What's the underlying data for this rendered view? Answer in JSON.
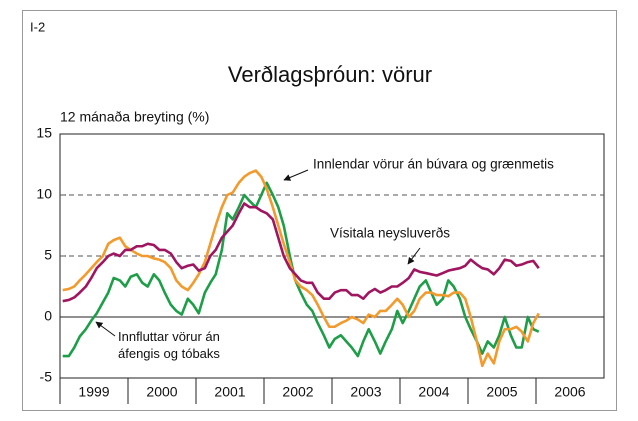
{
  "chart_data": {
    "type": "line",
    "label": "I-2",
    "title": "Verðlagsþróun: vörur",
    "y_axis_label": "12 mánaða breyting (%)",
    "xlim": [
      1999,
      2007
    ],
    "xticks": [
      1999,
      2000,
      2001,
      2002,
      2003,
      2004,
      2005,
      2006
    ],
    "ylim": [
      -5,
      15
    ],
    "yticks": [
      -5,
      0,
      5,
      10,
      15
    ],
    "grid": true,
    "x": [
      1999.04,
      1999.13,
      1999.21,
      1999.29,
      1999.38,
      1999.46,
      1999.54,
      1999.63,
      1999.71,
      1999.79,
      1999.88,
      1999.96,
      2000.04,
      2000.13,
      2000.21,
      2000.29,
      2000.38,
      2000.46,
      2000.54,
      2000.63,
      2000.71,
      2000.79,
      2000.88,
      2000.96,
      2001.04,
      2001.13,
      2001.21,
      2001.29,
      2001.38,
      2001.46,
      2001.54,
      2001.63,
      2001.71,
      2001.79,
      2001.88,
      2001.96,
      2002.04,
      2002.13,
      2002.21,
      2002.29,
      2002.38,
      2002.46,
      2002.54,
      2002.63,
      2002.71,
      2002.79,
      2002.88,
      2002.96,
      2003.04,
      2003.13,
      2003.21,
      2003.29,
      2003.38,
      2003.46,
      2003.54,
      2003.63,
      2003.71,
      2003.79,
      2003.88,
      2003.96,
      2004.04,
      2004.13,
      2004.21,
      2004.29,
      2004.38,
      2004.46,
      2004.54,
      2004.63,
      2004.71,
      2004.79,
      2004.88,
      2004.96,
      2005.04,
      2005.13,
      2005.21,
      2005.29,
      2005.38,
      2005.46,
      2005.54,
      2005.63,
      2005.71,
      2005.79,
      2005.88,
      2005.96,
      2006.04
    ],
    "series": [
      {
        "name": "Innfluttar vörur án áfengis og tóbaks",
        "color": "#1e9e48",
        "values": [
          -3.2,
          -3.2,
          -2.5,
          -1.6,
          -1.0,
          -0.3,
          0.3,
          1.2,
          2.0,
          3.2,
          3.0,
          2.5,
          3.3,
          3.5,
          2.8,
          2.5,
          3.5,
          3.0,
          2.0,
          1.0,
          0.5,
          0.2,
          1.5,
          1.0,
          0.3,
          2.0,
          2.8,
          3.5,
          5.5,
          8.5,
          8.0,
          9.0,
          10.0,
          9.5,
          9.0,
          10.0,
          11.0,
          10.0,
          9.0,
          7.5,
          5.0,
          3.0,
          2.0,
          1.0,
          0.5,
          -0.5,
          -1.5,
          -2.5,
          -1.8,
          -1.5,
          -2.0,
          -2.5,
          -3.2,
          -2.0,
          -1.0,
          -2.0,
          -3.0,
          -2.0,
          -1.0,
          0.5,
          -0.5,
          0.5,
          1.5,
          2.5,
          3.0,
          2.0,
          1.0,
          1.5,
          3.0,
          2.5,
          1.5,
          0.0,
          -1.0,
          -2.0,
          -3.0,
          -2.0,
          -2.5,
          -1.5,
          0.0,
          -1.5,
          -2.5,
          -2.5,
          0.0,
          -1.0,
          -1.2
        ]
      },
      {
        "name": "Innlendar vörur án búvara og grænmetis",
        "color": "#f39a2c",
        "values": [
          2.2,
          2.3,
          2.5,
          3.0,
          3.5,
          4.0,
          4.5,
          5.0,
          6.0,
          6.3,
          6.5,
          5.8,
          5.5,
          5.2,
          5.0,
          5.0,
          4.8,
          4.7,
          4.5,
          4.0,
          3.0,
          2.5,
          2.2,
          2.8,
          3.5,
          4.5,
          6.0,
          7.5,
          9.0,
          10.0,
          10.2,
          11.0,
          11.5,
          11.8,
          12.0,
          11.5,
          10.5,
          9.0,
          7.5,
          6.0,
          4.5,
          3.0,
          2.5,
          2.2,
          1.8,
          1.0,
          0.0,
          -0.8,
          -0.8,
          -0.5,
          -0.3,
          0.0,
          -0.2,
          -0.5,
          0.2,
          0.0,
          0.5,
          0.5,
          1.0,
          1.5,
          1.0,
          0.0,
          0.5,
          1.5,
          2.0,
          2.0,
          1.8,
          1.8,
          1.7,
          2.0,
          2.0,
          1.5,
          0.0,
          -2.0,
          -4.0,
          -3.0,
          -3.8,
          -2.0,
          -1.0,
          -1.0,
          -0.8,
          -1.2,
          -2.0,
          -0.5,
          0.3
        ]
      },
      {
        "name": "Vísitala neysluverðs",
        "color": "#a01560",
        "values": [
          1.3,
          1.4,
          1.6,
          2.0,
          2.5,
          3.2,
          4.0,
          4.5,
          5.0,
          5.2,
          5.0,
          5.5,
          5.5,
          5.8,
          5.8,
          6.0,
          5.9,
          5.5,
          5.5,
          5.2,
          4.5,
          4.0,
          4.2,
          4.3,
          3.8,
          4.0,
          5.0,
          5.5,
          6.5,
          7.0,
          7.5,
          8.5,
          9.3,
          9.0,
          9.0,
          8.7,
          8.5,
          8.0,
          6.5,
          5.0,
          4.0,
          3.5,
          3.0,
          2.8,
          2.8,
          2.0,
          1.5,
          1.5,
          2.0,
          2.2,
          2.2,
          1.8,
          1.8,
          1.5,
          2.0,
          2.3,
          2.0,
          2.2,
          2.5,
          2.5,
          2.8,
          3.2,
          3.9,
          3.7,
          3.6,
          3.5,
          3.4,
          3.6,
          3.8,
          3.9,
          4.0,
          4.2,
          4.7,
          4.3,
          4.0,
          3.9,
          3.5,
          4.0,
          4.7,
          4.6,
          4.2,
          4.3,
          4.5,
          4.6,
          4.0
        ]
      }
    ]
  }
}
